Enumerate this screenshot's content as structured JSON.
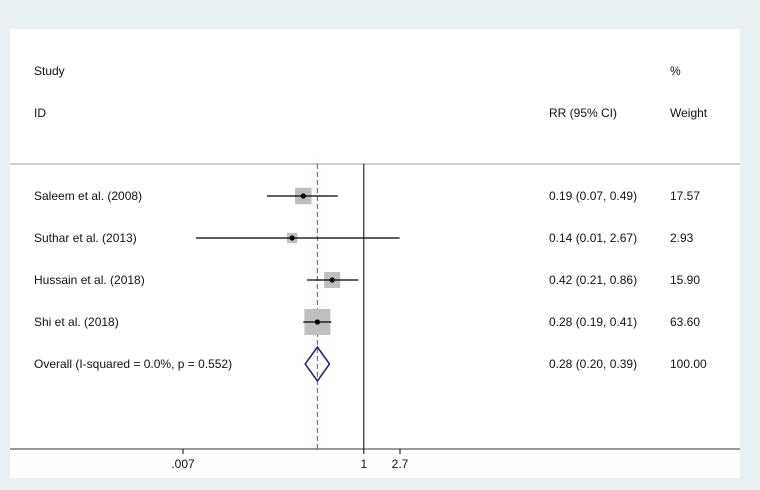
{
  "chart_data": {
    "type": "forest",
    "columns": {
      "study_header_line1": "Study",
      "study_header_line2": "ID",
      "effect_header": "RR (95% CI)",
      "weight_header_line1": "%",
      "weight_header_line2": "Weight"
    },
    "studies": [
      {
        "label": "Saleem et al. (2008)",
        "rr": 0.19,
        "lower": 0.07,
        "upper": 0.49,
        "ci_text": "0.19 (0.07, 0.49)",
        "weight": 17.57,
        "weight_text": "17.57"
      },
      {
        "label": "Suthar et al. (2013)",
        "rr": 0.14,
        "lower": 0.01,
        "upper": 2.67,
        "ci_text": "0.14 (0.01, 2.67)",
        "weight": 2.93,
        "weight_text": "2.93"
      },
      {
        "label": "Hussain et al. (2018)",
        "rr": 0.42,
        "lower": 0.21,
        "upper": 0.86,
        "ci_text": "0.42 (0.21, 0.86)",
        "weight": 15.9,
        "weight_text": "15.90"
      },
      {
        "label": "Shi et al. (2018)",
        "rr": 0.28,
        "lower": 0.19,
        "upper": 0.41,
        "ci_text": "0.28 (0.19, 0.41)",
        "weight": 63.6,
        "weight_text": "63.60"
      }
    ],
    "overall": {
      "label": "Overall  (I-squared = 0.0%, p = 0.552)",
      "rr": 0.28,
      "lower": 0.2,
      "upper": 0.39,
      "ci_text": "0.28 (0.20, 0.39)",
      "weight": 100.0,
      "weight_text": "100.00"
    },
    "x_scale": "log",
    "x_ticks": [
      0.007,
      1,
      2.7
    ],
    "x_tick_labels": [
      ".007",
      "1",
      "2.7"
    ],
    "xlim": [
      0.007,
      2.7
    ],
    "null_line": 1,
    "colors": {
      "box": "#bfbfbf",
      "diamond": "#2a2a6e",
      "overall_line": "#b35a6e",
      "line": "#000000",
      "text": "#111111"
    }
  }
}
